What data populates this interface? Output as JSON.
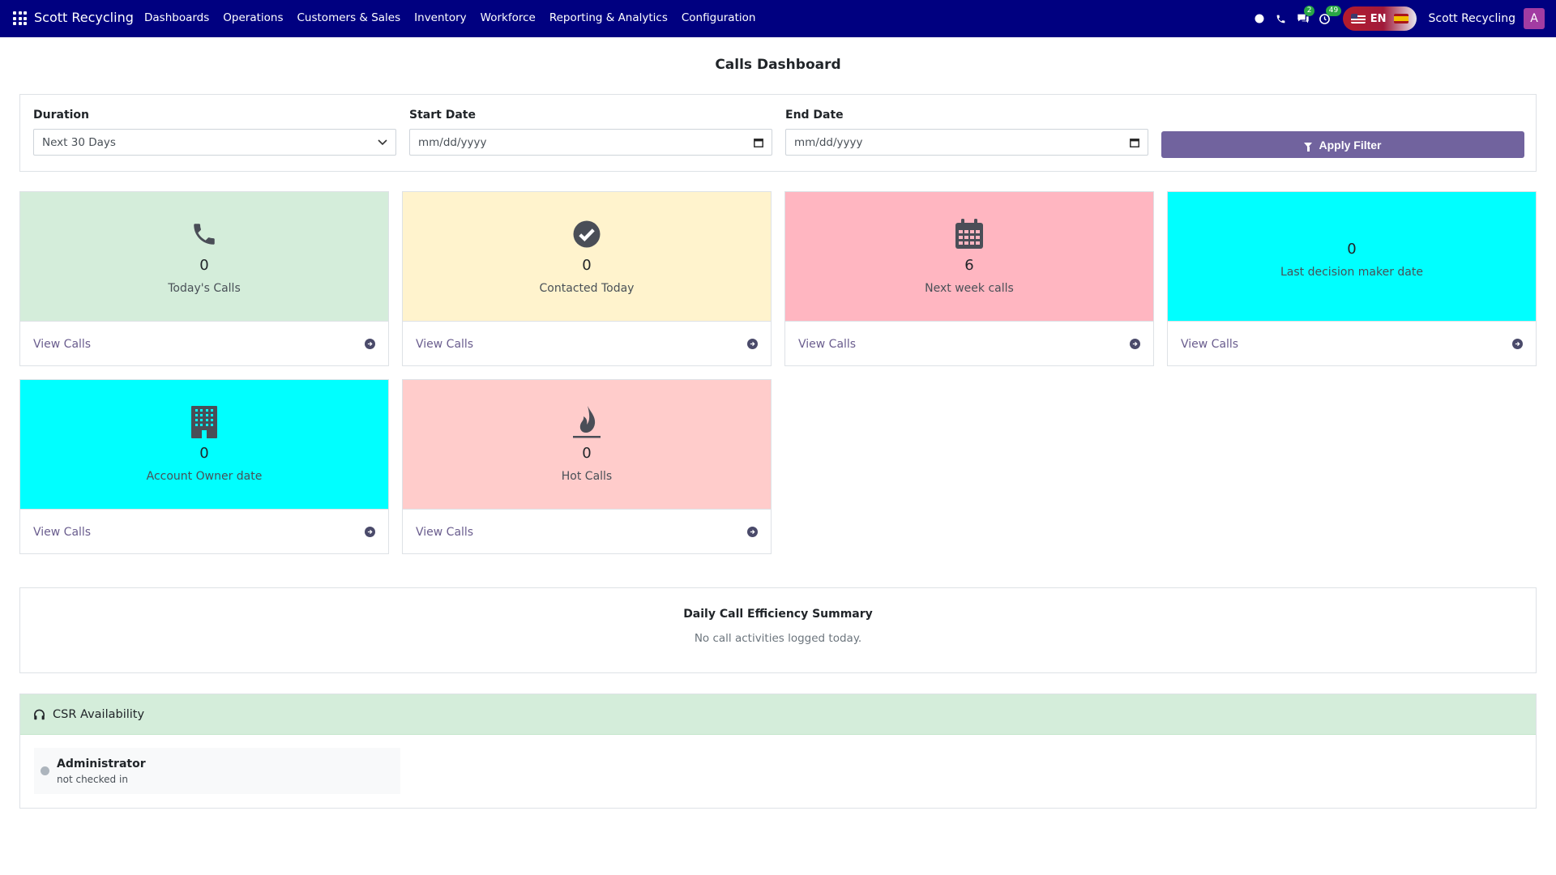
{
  "navbar": {
    "brand": "Scott Recycling",
    "menu": [
      "Dashboards",
      "Operations",
      "Customers & Sales",
      "Inventory",
      "Workforce",
      "Reporting & Analytics",
      "Configuration"
    ],
    "messages_badge": "2",
    "activities_badge": "49",
    "lang": "EN",
    "company": "Scott Recycling",
    "avatar_letter": "A"
  },
  "page": {
    "title": "Calls Dashboard"
  },
  "filters": {
    "duration_label": "Duration",
    "duration_value": "Next 30 Days",
    "start_label": "Start Date",
    "start_placeholder": "mm/dd/yyyy",
    "end_label": "End Date",
    "end_placeholder": "mm/dd/yyyy",
    "apply_label": "Apply Filter"
  },
  "stats": [
    {
      "value": "0",
      "label": "Today's Calls",
      "link": "View Calls",
      "color": "#d4edda",
      "icon": "phone-icon"
    },
    {
      "value": "0",
      "label": "Contacted Today",
      "link": "View Calls",
      "color": "#fff3cd",
      "icon": "check-circle-icon"
    },
    {
      "value": "6",
      "label": "Next week calls",
      "link": "View Calls",
      "color": "#ffb6c1",
      "icon": "calendar-icon"
    },
    {
      "value": "0",
      "label": "Last decision maker date",
      "link": "View Calls",
      "color": "#00ffff",
      "icon": ""
    },
    {
      "value": "0",
      "label": "Account Owner date",
      "link": "View Calls",
      "color": "#00ffff",
      "icon": "building-icon"
    },
    {
      "value": "0",
      "label": "Hot Calls",
      "link": "View Calls",
      "color": "#ffcccb",
      "icon": "fire-icon"
    }
  ],
  "summary": {
    "title": "Daily Call Efficiency Summary",
    "text": "No call activities logged today."
  },
  "csr": {
    "title": "CSR Availability",
    "items": [
      {
        "name": "Administrator",
        "status": "not checked in"
      }
    ]
  }
}
